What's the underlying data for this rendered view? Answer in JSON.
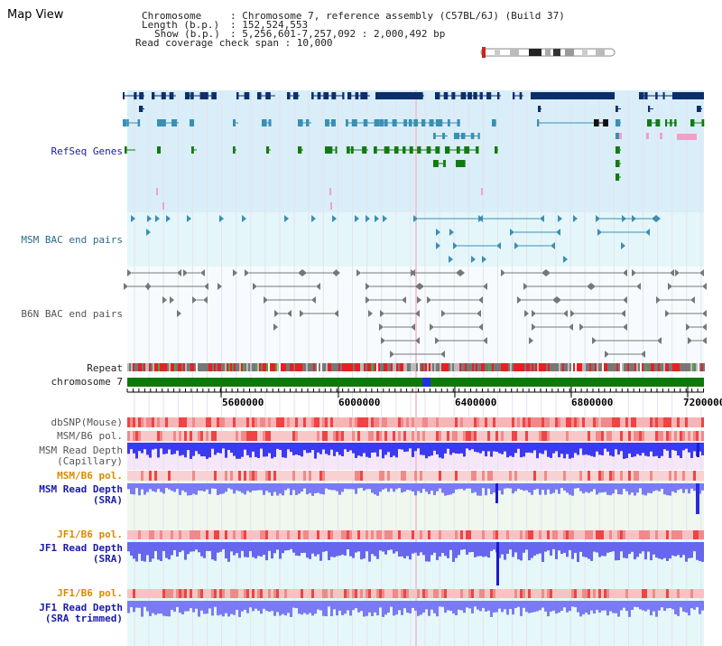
{
  "title": "Map View",
  "info": {
    "chromosome_key": "Chromosome",
    "chromosome_val": ": Chromosome 7, reference assembly (C57BL/6J) (Build 37)",
    "length_key": "Length (b.p.)",
    "length_val": ": 152,524,553",
    "show_key": "Show (b.p.)",
    "show_val": ": 5,256,601-7,257,092 : 2,000,492 bp",
    "coverage_line": "Read coverage check span : 10,000"
  },
  "tracks": {
    "refseq": "RefSeq Genes",
    "msm_bac": "MSM BAC end pairs",
    "b6n_bac": "B6N BAC end pairs",
    "repeat": "Repeat",
    "chromosome": "chromosome 7",
    "dbsnp": "dbSNP(Mouse)",
    "msm_b6_pol_1": "MSM/B6 pol.",
    "msm_depth_cap_1": "MSM Read Depth",
    "msm_depth_cap_2": "(Capillary)",
    "msm_b6_pol_2": "MSM/B6 pol.",
    "msm_depth_sra_1": "MSM Read Depth",
    "msm_depth_sra_2": "(SRA)",
    "jf1_b6_pol_1": "JF1/B6 pol.",
    "jf1_depth_sra_1": "JF1 Read Depth",
    "jf1_depth_sra_2": "(SRA)",
    "jf1_b6_pol_2": "JF1/B6 pol.",
    "jf1_depth_trim_1": "JF1 Read Depth",
    "jf1_depth_trim_2": "(SRA trimmed)"
  },
  "axis_ticks": [
    "5600000",
    "6000000",
    "6400000",
    "6800000",
    "7200000"
  ],
  "colors": {
    "gene_navy": "#0c2f6b",
    "gene_steel": "#3a8fb5",
    "gene_green": "#137a13",
    "refseq_bg": "#d9eef8",
    "msm_bg": "#e4f6fa",
    "chrom_green": "#0b7a0b",
    "depth_blue": "#6a6af0",
    "snp_red": "#ee3333"
  }
}
